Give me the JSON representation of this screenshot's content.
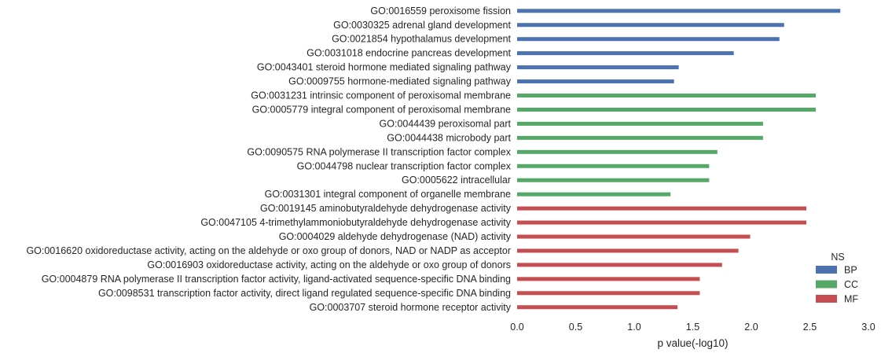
{
  "chart_data": {
    "type": "bar",
    "orientation": "horizontal",
    "xlabel": "p value(-log10)",
    "ylabel": "",
    "xlim": [
      0.0,
      3.0
    ],
    "xticks": [
      "0.0",
      "0.5",
      "1.0",
      "1.5",
      "2.0",
      "2.5",
      "3.0"
    ],
    "grid": false,
    "legend": {
      "title": "NS",
      "placement": "bottom-right",
      "entries": [
        {
          "name": "BP",
          "color": "#4c72b0"
        },
        {
          "name": "CC",
          "color": "#55a868"
        },
        {
          "name": "MF",
          "color": "#c44e52"
        }
      ]
    },
    "categories": [
      "GO:0016559 peroxisome fission",
      "GO:0030325 adrenal gland development",
      "GO:0021854 hypothalamus development",
      "GO:0031018 endocrine pancreas development",
      "GO:0043401 steroid hormone mediated signaling pathway",
      "GO:0009755 hormone-mediated signaling pathway",
      "GO:0031231 intrinsic component of peroxisomal membrane",
      "GO:0005779 integral component of peroxisomal membrane",
      "GO:0044439 peroxisomal part",
      "GO:0044438 microbody part",
      "GO:0090575 RNA polymerase II transcription factor complex",
      "GO:0044798 nuclear transcription factor complex",
      "GO:0005622 intracellular",
      "GO:0031301 integral component of organelle membrane",
      "GO:0019145 aminobutyraldehyde dehydrogenase activity",
      "GO:0047105 4-trimethylammoniobutyraldehyde dehydrogenase activity",
      "GO:0004029 aldehyde dehydrogenase (NAD) activity",
      "GO:0016620 oxidoreductase activity, acting on the aldehyde or oxo group of donors, NAD or NADP as acceptor",
      "GO:0016903 oxidoreductase activity, acting on the aldehyde or oxo group of donors",
      "GO:0004879 RNA polymerase II transcription factor activity, ligand-activated sequence-specific DNA binding",
      "GO:0098531 transcription factor activity, direct ligand regulated sequence-specific DNA binding",
      "GO:0003707 steroid hormone receptor activity"
    ],
    "namespace": [
      "BP",
      "BP",
      "BP",
      "BP",
      "BP",
      "BP",
      "CC",
      "CC",
      "CC",
      "CC",
      "CC",
      "CC",
      "CC",
      "CC",
      "MF",
      "MF",
      "MF",
      "MF",
      "MF",
      "MF",
      "MF",
      "MF"
    ],
    "values": [
      2.76,
      2.28,
      2.24,
      1.85,
      1.38,
      1.34,
      2.55,
      2.55,
      2.1,
      2.1,
      1.71,
      1.64,
      1.64,
      1.31,
      2.47,
      2.47,
      1.99,
      1.89,
      1.75,
      1.56,
      1.56,
      1.37
    ]
  }
}
